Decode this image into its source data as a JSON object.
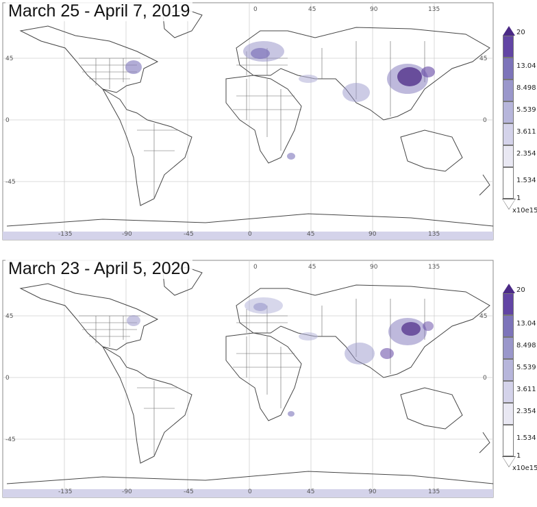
{
  "maps": [
    {
      "title": "March 25 - April 7, 2019",
      "colorbar": {
        "max": "20",
        "levels": [
          "13.04",
          "8.498",
          "5.539",
          "3.611",
          "2.354",
          "1.534"
        ],
        "min": "1",
        "unit": "x10e15"
      },
      "lon_labels": [
        "-135",
        "-90",
        "-45",
        "0",
        "45",
        "90",
        "135"
      ],
      "lat_labels": [
        "45",
        "0",
        "-45"
      ],
      "colors": [
        "#ffffff",
        "#e9e8f3",
        "#d4d3ea",
        "#b7b6db",
        "#9a97cb",
        "#7d74ba",
        "#6245a4",
        "#4b2a86"
      ]
    },
    {
      "title": "March 23 - April 5, 2020",
      "colorbar": {
        "max": "20",
        "levels": [
          "13.04",
          "8.498",
          "5.539",
          "3.611",
          "2.354",
          "1.534"
        ],
        "min": "1",
        "unit": "x10e15"
      },
      "lon_labels": [
        "-135",
        "-90",
        "-45",
        "0",
        "45",
        "90",
        "135"
      ],
      "lat_labels": [
        "45",
        "0",
        "-45"
      ],
      "colors": [
        "#ffffff",
        "#e9e8f3",
        "#d4d3ea",
        "#b7b6db",
        "#9a97cb",
        "#7d74ba",
        "#6245a4",
        "#4b2a86"
      ]
    }
  ]
}
